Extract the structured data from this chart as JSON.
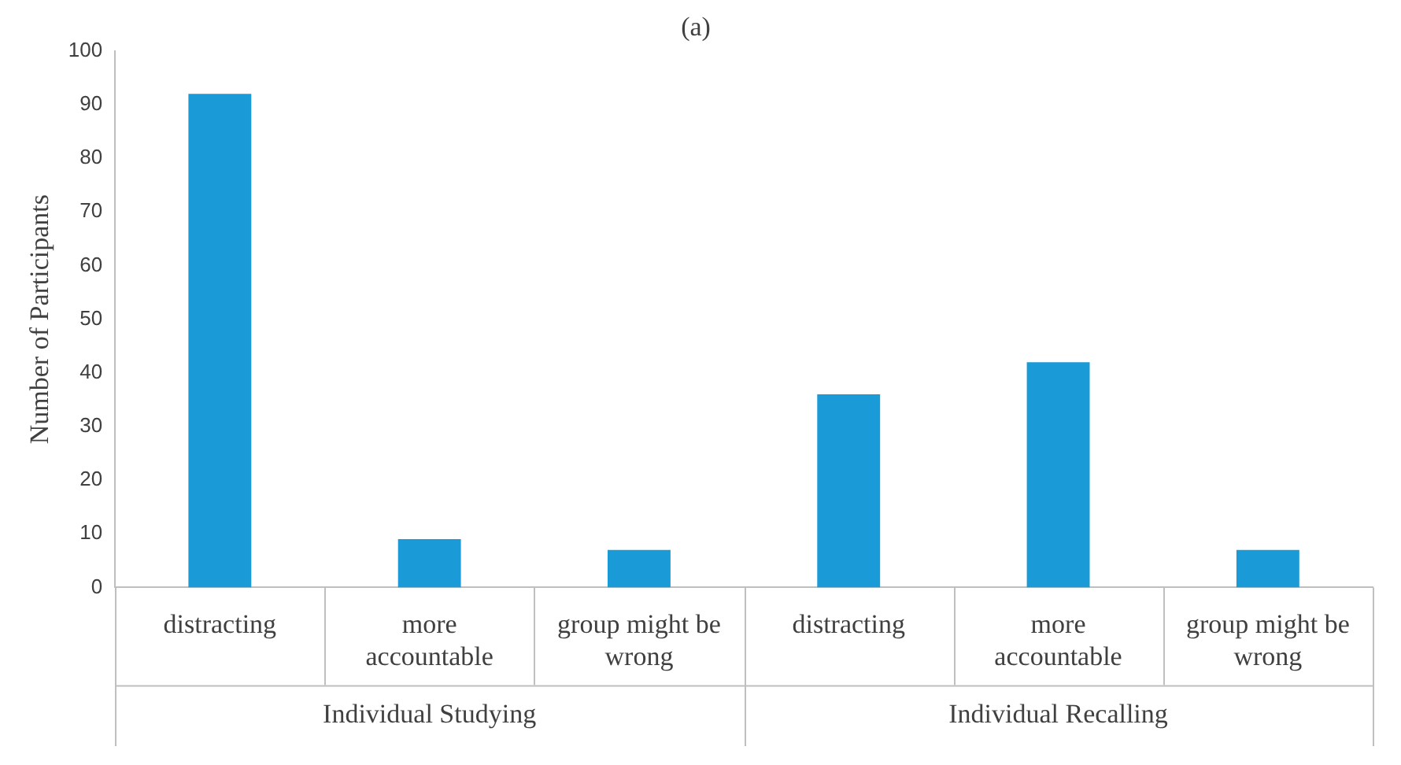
{
  "chart_data": {
    "type": "bar",
    "title": "(a)",
    "ylabel": "Number of Participants",
    "categories": [
      "distracting",
      "more accountable",
      "group might be wrong",
      "distracting",
      "more accountable",
      "group might be wrong"
    ],
    "values": [
      92,
      9,
      7,
      36,
      42,
      7
    ],
    "color": "#1a9bd7",
    "ylim": [
      0,
      100
    ],
    "yticks": [
      0,
      10,
      20,
      30,
      40,
      50,
      60,
      70,
      80,
      90,
      100
    ],
    "grid": false,
    "annotations": [
      "Individual Studying",
      "Individual Recalling"
    ]
  }
}
